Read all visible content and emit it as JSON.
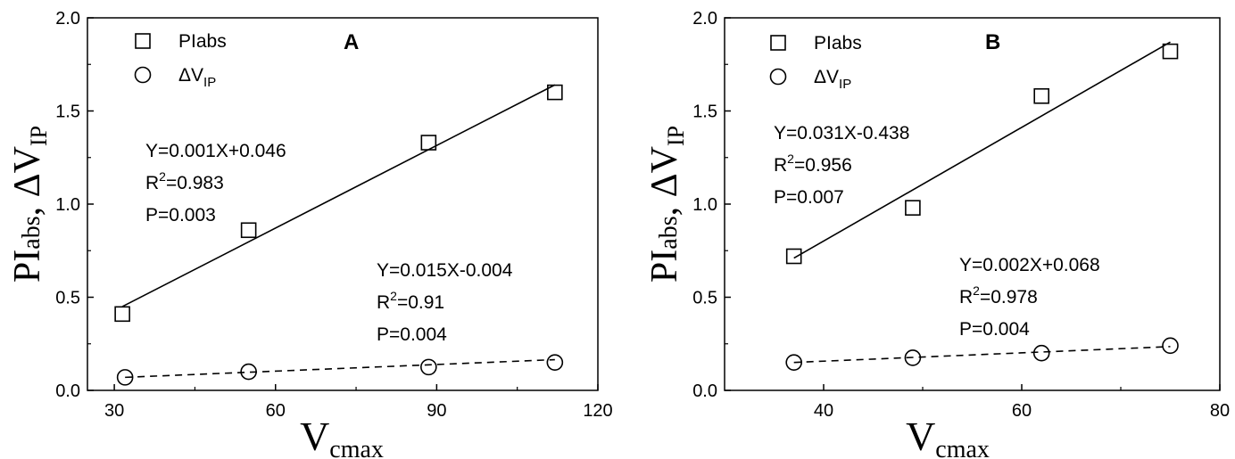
{
  "chart_data": [
    {
      "type": "scatter",
      "panel_label": "A",
      "xlabel": {
        "main": "V",
        "sub": "cmax"
      },
      "ylabel": {
        "p1": "PI",
        "p2": "abs",
        "p3": ", ΔV",
        "p4": "IP"
      },
      "xlim": [
        25,
        120
      ],
      "ylim": [
        0,
        2.0
      ],
      "xticks": [
        "30",
        "60",
        "90",
        "120"
      ],
      "yticks": [
        "0.0",
        "0.5",
        "1.0",
        "1.5",
        "2.0"
      ],
      "legend": [
        {
          "name": "PIabs",
          "marker": "square",
          "label": "PIabs",
          "label_sub": ""
        },
        {
          "name": "ΔVIP",
          "marker": "circle",
          "label": "ΔV",
          "label_sub": "IP"
        }
      ],
      "series": [
        {
          "name": "PIabs",
          "marker": "square",
          "x": [
            31.5,
            55,
            88.5,
            112
          ],
          "y": [
            0.41,
            0.86,
            1.33,
            1.6
          ],
          "fit_x": [
            31.5,
            112
          ],
          "fit_y": [
            0.45,
            1.64
          ],
          "fit_style": "solid"
        },
        {
          "name": "ΔVIP",
          "marker": "circle",
          "x": [
            32,
            55,
            88.5,
            112
          ],
          "y": [
            0.07,
            0.1,
            0.125,
            0.15
          ],
          "fit_x": [
            32,
            112
          ],
          "fit_y": [
            0.07,
            0.165
          ],
          "fit_style": "dashed"
        }
      ],
      "annotations": [
        {
          "lines": [
            {
              "t": "Y=0.001X+0.046"
            },
            {
              "t": "R",
              "sup": "2",
              "rest": "=0.983"
            },
            {
              "t": "P=0.003"
            }
          ]
        },
        {
          "lines": [
            {
              "t": "Y=0.015X-0.004"
            },
            {
              "t": "R",
              "sup": "2",
              "rest": "=0.91"
            },
            {
              "t": "P=0.004"
            }
          ]
        }
      ]
    },
    {
      "type": "scatter",
      "panel_label": "B",
      "xlabel": {
        "main": "V",
        "sub": "cmax"
      },
      "ylabel": {
        "p1": "PI",
        "p2": "abs",
        "p3": ", ΔV",
        "p4": "IP"
      },
      "xlim": [
        30,
        80
      ],
      "ylim": [
        0,
        2.0
      ],
      "xticks": [
        "40",
        "60",
        "80"
      ],
      "yticks": [
        "0.0",
        "0.5",
        "1.0",
        "1.5",
        "2.0"
      ],
      "legend": [
        {
          "name": "PIabs",
          "marker": "square",
          "label": "PIabs",
          "label_sub": ""
        },
        {
          "name": "ΔVIP",
          "marker": "circle",
          "label": "ΔV",
          "label_sub": "IP"
        }
      ],
      "series": [
        {
          "name": "PIabs",
          "marker": "square",
          "x": [
            37,
            49,
            62,
            75
          ],
          "y": [
            0.72,
            0.98,
            1.58,
            1.82
          ],
          "fit_x": [
            37,
            75
          ],
          "fit_y": [
            0.71,
            1.87
          ],
          "fit_style": "solid"
        },
        {
          "name": "ΔVIP",
          "marker": "circle",
          "x": [
            37,
            49,
            62,
            75
          ],
          "y": [
            0.15,
            0.175,
            0.2,
            0.24
          ],
          "fit_x": [
            37,
            75
          ],
          "fit_y": [
            0.15,
            0.235
          ],
          "fit_style": "dashed"
        }
      ],
      "annotations": [
        {
          "lines": [
            {
              "t": "Y=0.031X-0.438"
            },
            {
              "t": "R",
              "sup": "2",
              "rest": "=0.956"
            },
            {
              "t": "P=0.007"
            }
          ]
        },
        {
          "lines": [
            {
              "t": "Y=0.002X+0.068"
            },
            {
              "t": "R",
              "sup": "2",
              "rest": "=0.978"
            },
            {
              "t": "P=0.004"
            }
          ]
        }
      ]
    }
  ]
}
